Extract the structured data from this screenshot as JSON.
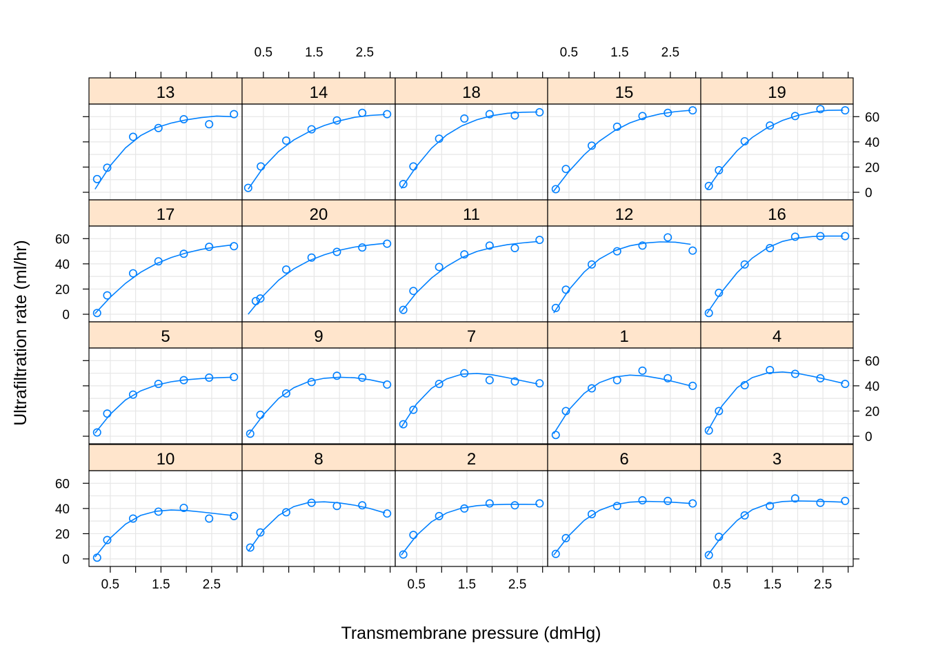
{
  "chart_data": {
    "type": "scatter",
    "xlabel": "Transmembrane pressure (dmHg)",
    "ylabel": "Ultrafiltration rate (ml/hr)",
    "x_ticks": [
      0.5,
      1.5,
      2.5
    ],
    "y_ticks": [
      0,
      20,
      40,
      60
    ],
    "xlim": [
      0.08,
      3.1
    ],
    "ylim": [
      -6,
      70
    ],
    "layout": {
      "columns": 5,
      "rows": 4
    },
    "panel_order": [
      "13",
      "14",
      "18",
      "15",
      "19",
      "17",
      "20",
      "11",
      "12",
      "16",
      "5",
      "9",
      "7",
      "1",
      "4",
      "10",
      "8",
      "2",
      "6",
      "3"
    ],
    "panels": [
      {
        "subject": "13",
        "x": [
          0.24,
          0.44,
          0.95,
          1.45,
          1.95,
          2.45,
          2.94
        ],
        "y": [
          10.5,
          19.5,
          44,
          51,
          58,
          54,
          62
        ],
        "fit_x": [
          0.2,
          0.5,
          0.8,
          1.1,
          1.4,
          1.7,
          2.0,
          2.3,
          2.6,
          2.9
        ],
        "fit_y": [
          2.5,
          21.1,
          35.2,
          45.0,
          51.2,
          54.9,
          57.5,
          59.3,
          60.5,
          60.0
        ]
      },
      {
        "subject": "14",
        "x": [
          0.2,
          0.45,
          0.95,
          1.45,
          1.95,
          2.45,
          2.94
        ],
        "y": [
          3.5,
          20.5,
          41,
          50,
          57,
          63,
          62
        ],
        "fit_x": [
          0.2,
          0.5,
          0.8,
          1.1,
          1.4,
          1.7,
          2.0,
          2.3,
          2.6,
          2.9
        ],
        "fit_y": [
          2.5,
          19.8,
          32.4,
          41.5,
          48.0,
          53.0,
          56.7,
          59.5,
          61.0,
          61.7
        ]
      },
      {
        "subject": "18",
        "x": [
          0.24,
          0.44,
          0.95,
          1.45,
          1.95,
          2.45,
          2.94
        ],
        "y": [
          6.5,
          20.5,
          42.5,
          58.5,
          62,
          61,
          63.5
        ],
        "fit_x": [
          0.2,
          0.5,
          0.8,
          1.1,
          1.4,
          1.7,
          2.0,
          2.3,
          2.6,
          2.9
        ],
        "fit_y": [
          3.0,
          20.5,
          35.0,
          45.5,
          52.7,
          57.6,
          60.8,
          62.7,
          63.5,
          63.7
        ]
      },
      {
        "subject": "15",
        "x": [
          0.24,
          0.44,
          0.95,
          1.45,
          1.95,
          2.45,
          2.94
        ],
        "y": [
          2.5,
          18.5,
          37,
          52,
          60.5,
          63,
          65
        ],
        "fit_x": [
          0.2,
          0.5,
          0.8,
          1.1,
          1.4,
          1.7,
          2.0,
          2.3,
          2.6,
          2.9
        ],
        "fit_y": [
          1.0,
          16.5,
          29.7,
          40.6,
          48.9,
          55.0,
          59.3,
          62.2,
          64.0,
          65.0
        ]
      },
      {
        "subject": "19",
        "x": [
          0.24,
          0.44,
          0.95,
          1.45,
          1.95,
          2.45,
          2.94
        ],
        "y": [
          5,
          17.5,
          40.5,
          53,
          60.5,
          66,
          65
        ],
        "fit_x": [
          0.2,
          0.5,
          0.8,
          1.1,
          1.4,
          1.7,
          2.0,
          2.3,
          2.6,
          2.9
        ],
        "fit_y": [
          2.0,
          19.0,
          33.0,
          43.5,
          51.3,
          57.0,
          61.0,
          63.6,
          65.0,
          65.2
        ]
      },
      {
        "subject": "17",
        "x": [
          0.24,
          0.44,
          0.95,
          1.45,
          1.95,
          2.45,
          2.94
        ],
        "y": [
          1,
          15,
          32.5,
          42,
          48,
          53.5,
          54
        ],
        "fit_x": [
          0.2,
          0.5,
          0.8,
          1.1,
          1.4,
          1.7,
          2.0,
          2.3,
          2.6,
          2.9
        ],
        "fit_y": [
          0.5,
          13.5,
          24.5,
          33.3,
          40.0,
          45.0,
          48.7,
          51.5,
          53.5,
          55.0
        ]
      },
      {
        "subject": "20",
        "x": [
          0.35,
          0.44,
          0.95,
          1.45,
          1.95,
          2.45,
          2.94
        ],
        "y": [
          10.5,
          12.5,
          35.5,
          45,
          49.5,
          53,
          56
        ],
        "fit_x": [
          0.2,
          0.5,
          0.8,
          1.1,
          1.4,
          1.7,
          2.0,
          2.3,
          2.6,
          2.9
        ],
        "fit_y": [
          0.0,
          14.8,
          27.0,
          36.0,
          42.5,
          47.2,
          50.8,
          53.3,
          55.0,
          56.3
        ]
      },
      {
        "subject": "11",
        "x": [
          0.24,
          0.44,
          0.95,
          1.45,
          1.95,
          2.45,
          2.94
        ],
        "y": [
          3.5,
          18.5,
          37.5,
          47.5,
          54.5,
          52.5,
          59
        ],
        "fit_x": [
          0.2,
          0.5,
          0.8,
          1.1,
          1.4,
          1.7,
          2.0,
          2.3,
          2.6,
          2.9
        ],
        "fit_y": [
          2.0,
          17.0,
          28.8,
          38.0,
          45.0,
          49.8,
          53.0,
          55.2,
          56.6,
          57.7
        ]
      },
      {
        "subject": "12",
        "x": [
          0.24,
          0.44,
          0.95,
          1.45,
          1.95,
          2.45,
          2.94
        ],
        "y": [
          5,
          19.5,
          39.5,
          50,
          54.5,
          61,
          50.5
        ],
        "fit_x": [
          0.2,
          0.5,
          0.8,
          1.1,
          1.4,
          1.7,
          2.0,
          2.3,
          2.6,
          2.9
        ],
        "fit_y": [
          1.0,
          19.5,
          33.5,
          43.8,
          50.5,
          54.3,
          56.5,
          57.4,
          57.2,
          55.5
        ]
      },
      {
        "subject": "16",
        "x": [
          0.24,
          0.44,
          0.95,
          1.45,
          1.95,
          2.45,
          2.94
        ],
        "y": [
          1,
          17,
          39.5,
          52.5,
          61.5,
          62,
          62
        ],
        "fit_x": [
          0.2,
          0.5,
          0.8,
          1.1,
          1.4,
          1.7,
          2.0,
          2.3,
          2.6,
          2.9
        ],
        "fit_y": [
          0.5,
          18.0,
          33.0,
          44.5,
          52.7,
          57.8,
          60.5,
          61.7,
          62.0,
          62.0
        ]
      },
      {
        "subject": "5",
        "x": [
          0.24,
          0.44,
          0.95,
          1.45,
          1.95,
          2.45,
          2.94
        ],
        "y": [
          3,
          18,
          33,
          41.5,
          44.5,
          46.5,
          47
        ],
        "fit_x": [
          0.2,
          0.5,
          0.8,
          1.1,
          1.4,
          1.7,
          2.0,
          2.3,
          2.6,
          2.9
        ],
        "fit_y": [
          2.5,
          17.5,
          28.8,
          36.0,
          40.5,
          43.2,
          44.8,
          45.8,
          46.4,
          46.8
        ]
      },
      {
        "subject": "9",
        "x": [
          0.24,
          0.44,
          0.95,
          1.45,
          1.95,
          2.45,
          2.94
        ],
        "y": [
          2,
          17,
          34,
          43,
          48,
          46.5,
          41
        ],
        "fit_x": [
          0.2,
          0.5,
          0.8,
          1.1,
          1.4,
          1.7,
          2.0,
          2.3,
          2.6,
          2.9
        ],
        "fit_y": [
          1.0,
          17.0,
          30.0,
          38.5,
          43.5,
          46.0,
          46.8,
          46.4,
          44.8,
          42.3
        ]
      },
      {
        "subject": "7",
        "x": [
          0.24,
          0.44,
          0.95,
          1.45,
          1.95,
          2.45,
          2.94
        ],
        "y": [
          9.5,
          21,
          41.5,
          50,
          44.5,
          43.5,
          42
        ],
        "fit_x": [
          0.2,
          0.5,
          0.8,
          1.1,
          1.4,
          1.7,
          2.0,
          2.3,
          2.6,
          2.9
        ],
        "fit_y": [
          7.0,
          25.5,
          38.0,
          45.5,
          49.2,
          49.8,
          48.8,
          46.5,
          44.0,
          41.5
        ]
      },
      {
        "subject": "1",
        "x": [
          0.24,
          0.44,
          0.95,
          1.45,
          1.95,
          2.45,
          2.94
        ],
        "y": [
          1,
          20,
          38,
          44.5,
          52,
          46,
          40
        ],
        "fit_x": [
          0.2,
          0.5,
          0.8,
          1.1,
          1.4,
          1.7,
          2.0,
          2.3,
          2.6,
          2.9
        ],
        "fit_y": [
          2.0,
          21.0,
          34.0,
          42.5,
          47.0,
          48.5,
          47.8,
          45.8,
          43.0,
          40.0
        ]
      },
      {
        "subject": "4",
        "x": [
          0.24,
          0.44,
          0.95,
          1.45,
          1.95,
          2.45,
          2.94
        ],
        "y": [
          4.5,
          20,
          40.5,
          52.5,
          49.5,
          46,
          41.5
        ],
        "fit_x": [
          0.2,
          0.5,
          0.8,
          1.1,
          1.4,
          1.7,
          2.0,
          2.3,
          2.6,
          2.9
        ],
        "fit_y": [
          3.0,
          24.0,
          38.5,
          46.5,
          50.2,
          51.0,
          49.8,
          47.5,
          44.8,
          42.0
        ]
      },
      {
        "subject": "10",
        "x": [
          0.24,
          0.44,
          0.95,
          1.45,
          1.95,
          2.45,
          2.94
        ],
        "y": [
          1,
          15,
          32,
          37.5,
          40.5,
          32,
          34
        ],
        "fit_x": [
          0.2,
          0.5,
          0.8,
          1.1,
          1.4,
          1.7,
          2.0,
          2.3,
          2.6,
          2.9
        ],
        "fit_y": [
          1.5,
          16.5,
          27.5,
          34.5,
          37.8,
          38.8,
          38.4,
          37.2,
          35.8,
          34.5
        ]
      },
      {
        "subject": "8",
        "x": [
          0.24,
          0.44,
          0.95,
          1.45,
          1.95,
          2.45,
          2.94
        ],
        "y": [
          9,
          21,
          37,
          44.5,
          42,
          42.5,
          36
        ],
        "fit_x": [
          0.2,
          0.5,
          0.8,
          1.1,
          1.4,
          1.7,
          2.0,
          2.3,
          2.6,
          2.9
        ],
        "fit_y": [
          6.0,
          23.0,
          34.5,
          41.5,
          44.8,
          45.3,
          44.4,
          42.6,
          40.0,
          36.5
        ]
      },
      {
        "subject": "2",
        "x": [
          0.24,
          0.44,
          0.95,
          1.45,
          1.95,
          2.45,
          2.94
        ],
        "y": [
          3.5,
          19,
          34,
          40,
          44,
          42.5,
          44
        ],
        "fit_x": [
          0.2,
          0.5,
          0.8,
          1.1,
          1.4,
          1.7,
          2.0,
          2.3,
          2.6,
          2.9
        ],
        "fit_y": [
          3.0,
          18.5,
          29.5,
          36.5,
          40.3,
          42.2,
          43.0,
          43.3,
          43.3,
          43.2
        ]
      },
      {
        "subject": "6",
        "x": [
          0.24,
          0.44,
          0.95,
          1.45,
          1.95,
          2.45,
          2.94
        ],
        "y": [
          4,
          16.5,
          35.5,
          42,
          46.5,
          46,
          44
        ],
        "fit_x": [
          0.2,
          0.5,
          0.8,
          1.1,
          1.4,
          1.7,
          2.0,
          2.3,
          2.6,
          2.9
        ],
        "fit_y": [
          3.0,
          18.5,
          30.5,
          38.5,
          43.0,
          45.0,
          45.6,
          45.4,
          44.8,
          44.0
        ]
      },
      {
        "subject": "3",
        "x": [
          0.24,
          0.44,
          0.95,
          1.45,
          1.95,
          2.45,
          2.94
        ],
        "y": [
          3,
          17.5,
          34.5,
          42,
          48,
          44.5,
          46
        ],
        "fit_x": [
          0.2,
          0.5,
          0.8,
          1.1,
          1.4,
          1.7,
          2.0,
          2.3,
          2.6,
          2.9
        ],
        "fit_y": [
          2.0,
          18.0,
          30.5,
          39.0,
          43.5,
          45.5,
          46.0,
          45.8,
          45.5,
          45.0
        ]
      }
    ],
    "colors": {
      "points": "#0080ff",
      "fit_line": "#0080ff",
      "strip_bg": "#ffe5cc",
      "grid": "#e6e6e6",
      "frame": "#000000"
    },
    "grid": true
  }
}
